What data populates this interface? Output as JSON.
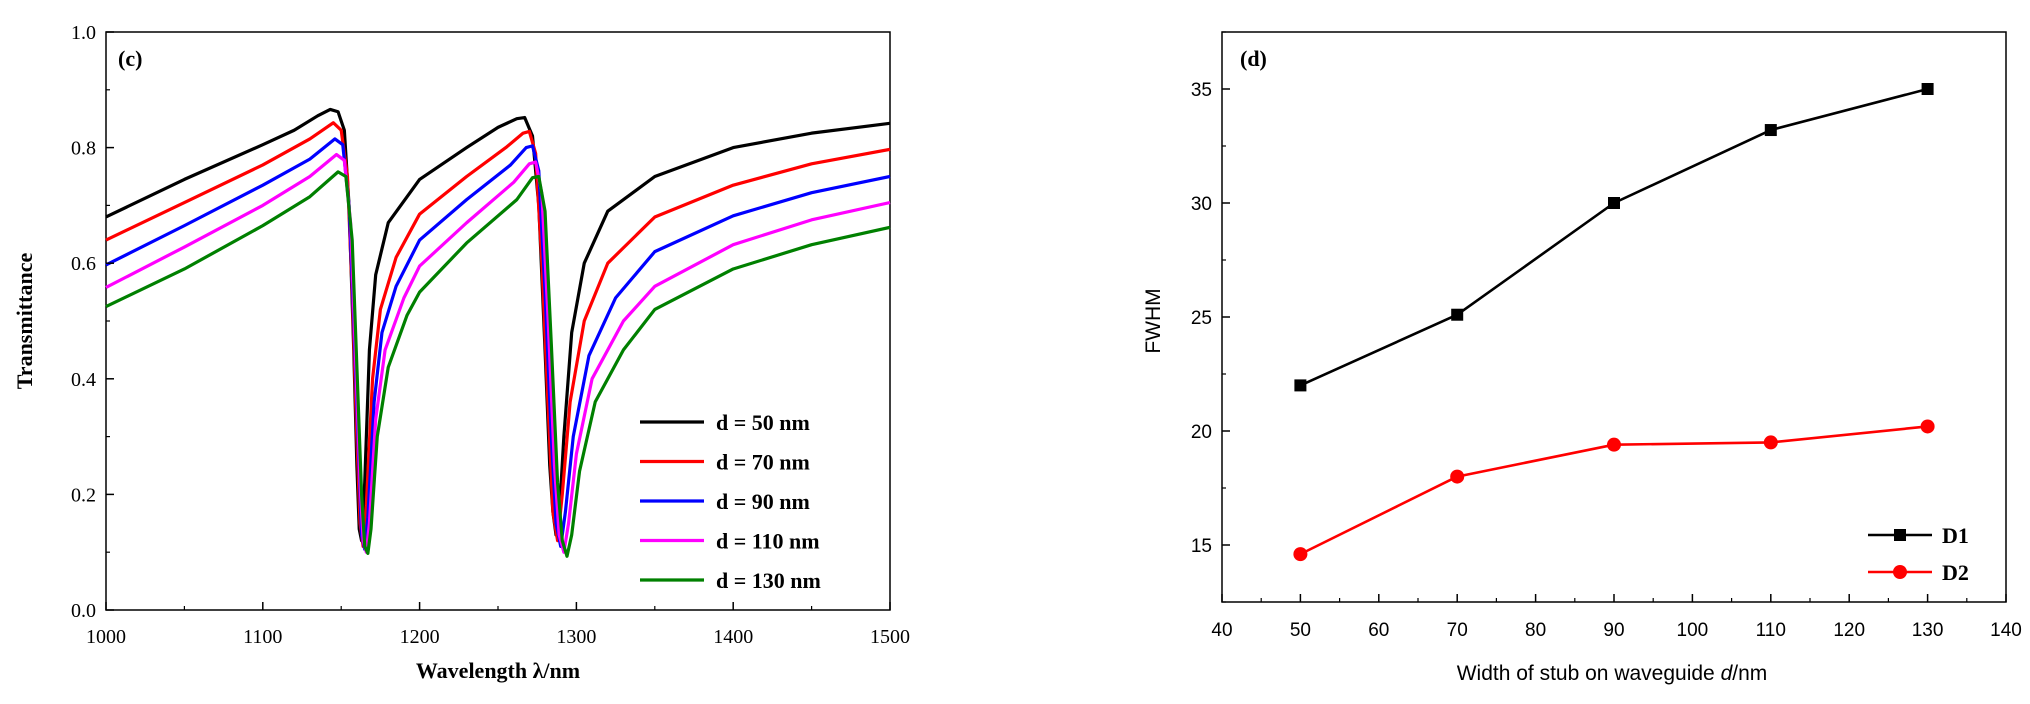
{
  "chart_data": [
    {
      "type": "line",
      "panel_label": "(c)",
      "title": "",
      "xlabel": "Wavelength λ/nm",
      "ylabel": "Transmittance",
      "xlim": [
        1000,
        1500
      ],
      "ylim": [
        0.0,
        1.0
      ],
      "xticks": [
        "1000",
        "1100",
        "1200",
        "1300",
        "1400",
        "1500"
      ],
      "yticks": [
        "0.0",
        "0.2",
        "0.4",
        "0.6",
        "0.8",
        "1.0"
      ],
      "legend_position": "bottom-right",
      "series": [
        {
          "name": "d = 50 nm",
          "color": "#000000",
          "points": [
            [
              1000,
              0.68
            ],
            [
              1050,
              0.745
            ],
            [
              1100,
              0.805
            ],
            [
              1120,
              0.83
            ],
            [
              1135,
              0.855
            ],
            [
              1143,
              0.866
            ],
            [
              1148,
              0.862
            ],
            [
              1152,
              0.83
            ],
            [
              1155,
              0.7
            ],
            [
              1158,
              0.45
            ],
            [
              1160,
              0.25
            ],
            [
              1161.5,
              0.14
            ],
            [
              1163,
              0.12
            ],
            [
              1165,
              0.22
            ],
            [
              1168,
              0.45
            ],
            [
              1172,
              0.58
            ],
            [
              1180,
              0.67
            ],
            [
              1200,
              0.745
            ],
            [
              1230,
              0.8
            ],
            [
              1250,
              0.835
            ],
            [
              1262,
              0.85
            ],
            [
              1267,
              0.852
            ],
            [
              1272,
              0.82
            ],
            [
              1276,
              0.7
            ],
            [
              1280,
              0.45
            ],
            [
              1283,
              0.25
            ],
            [
              1285,
              0.17
            ],
            [
              1287,
              0.13
            ],
            [
              1289,
              0.16
            ],
            [
              1292,
              0.3
            ],
            [
              1297,
              0.48
            ],
            [
              1305,
              0.6
            ],
            [
              1320,
              0.69
            ],
            [
              1350,
              0.75
            ],
            [
              1400,
              0.8
            ],
            [
              1450,
              0.825
            ],
            [
              1500,
              0.842
            ]
          ]
        },
        {
          "name": "d = 70 nm",
          "color": "#ff0000",
          "points": [
            [
              1000,
              0.64
            ],
            [
              1050,
              0.705
            ],
            [
              1100,
              0.77
            ],
            [
              1130,
              0.815
            ],
            [
              1145,
              0.843
            ],
            [
              1150,
              0.83
            ],
            [
              1154,
              0.75
            ],
            [
              1157,
              0.55
            ],
            [
              1160,
              0.3
            ],
            [
              1162,
              0.15
            ],
            [
              1164,
              0.11
            ],
            [
              1166,
              0.18
            ],
            [
              1170,
              0.4
            ],
            [
              1175,
              0.52
            ],
            [
              1185,
              0.61
            ],
            [
              1200,
              0.685
            ],
            [
              1230,
              0.75
            ],
            [
              1255,
              0.8
            ],
            [
              1266,
              0.825
            ],
            [
              1270,
              0.828
            ],
            [
              1274,
              0.79
            ],
            [
              1278,
              0.6
            ],
            [
              1282,
              0.35
            ],
            [
              1285,
              0.17
            ],
            [
              1288,
              0.12
            ],
            [
              1291,
              0.2
            ],
            [
              1296,
              0.36
            ],
            [
              1305,
              0.5
            ],
            [
              1320,
              0.6
            ],
            [
              1350,
              0.68
            ],
            [
              1400,
              0.735
            ],
            [
              1450,
              0.772
            ],
            [
              1500,
              0.797
            ]
          ]
        },
        {
          "name": "d = 90 nm",
          "color": "#0000ff",
          "points": [
            [
              1000,
              0.597
            ],
            [
              1050,
              0.665
            ],
            [
              1100,
              0.735
            ],
            [
              1130,
              0.78
            ],
            [
              1146,
              0.815
            ],
            [
              1151,
              0.805
            ],
            [
              1155,
              0.7
            ],
            [
              1158,
              0.5
            ],
            [
              1161,
              0.27
            ],
            [
              1163,
              0.13
            ],
            [
              1165,
              0.105
            ],
            [
              1167,
              0.16
            ],
            [
              1171,
              0.36
            ],
            [
              1176,
              0.48
            ],
            [
              1185,
              0.56
            ],
            [
              1200,
              0.64
            ],
            [
              1230,
              0.71
            ],
            [
              1258,
              0.77
            ],
            [
              1268,
              0.8
            ],
            [
              1272,
              0.803
            ],
            [
              1276,
              0.76
            ],
            [
              1280,
              0.55
            ],
            [
              1284,
              0.3
            ],
            [
              1287,
              0.15
            ],
            [
              1290,
              0.11
            ],
            [
              1293,
              0.17
            ],
            [
              1298,
              0.3
            ],
            [
              1308,
              0.44
            ],
            [
              1325,
              0.54
            ],
            [
              1350,
              0.62
            ],
            [
              1400,
              0.682
            ],
            [
              1450,
              0.722
            ],
            [
              1500,
              0.75
            ]
          ]
        },
        {
          "name": "d = 110 nm",
          "color": "#ff00ff",
          "points": [
            [
              1000,
              0.558
            ],
            [
              1050,
              0.628
            ],
            [
              1100,
              0.7
            ],
            [
              1130,
              0.75
            ],
            [
              1147,
              0.788
            ],
            [
              1152,
              0.778
            ],
            [
              1156,
              0.67
            ],
            [
              1159,
              0.45
            ],
            [
              1162,
              0.22
            ],
            [
              1164,
              0.12
            ],
            [
              1166,
              0.1
            ],
            [
              1168,
              0.15
            ],
            [
              1172,
              0.33
            ],
            [
              1178,
              0.45
            ],
            [
              1190,
              0.54
            ],
            [
              1200,
              0.595
            ],
            [
              1230,
              0.67
            ],
            [
              1260,
              0.74
            ],
            [
              1270,
              0.772
            ],
            [
              1274,
              0.775
            ],
            [
              1278,
              0.72
            ],
            [
              1282,
              0.5
            ],
            [
              1286,
              0.25
            ],
            [
              1289,
              0.13
            ],
            [
              1292,
              0.1
            ],
            [
              1295,
              0.15
            ],
            [
              1300,
              0.27
            ],
            [
              1310,
              0.4
            ],
            [
              1330,
              0.5
            ],
            [
              1350,
              0.56
            ],
            [
              1400,
              0.632
            ],
            [
              1450,
              0.675
            ],
            [
              1500,
              0.705
            ]
          ]
        },
        {
          "name": "d = 130 nm",
          "color": "#008000",
          "points": [
            [
              1000,
              0.525
            ],
            [
              1050,
              0.59
            ],
            [
              1100,
              0.665
            ],
            [
              1130,
              0.715
            ],
            [
              1148,
              0.758
            ],
            [
              1153,
              0.75
            ],
            [
              1157,
              0.64
            ],
            [
              1160,
              0.42
            ],
            [
              1163,
              0.2
            ],
            [
              1165,
              0.11
            ],
            [
              1167,
              0.098
            ],
            [
              1169,
              0.14
            ],
            [
              1173,
              0.3
            ],
            [
              1180,
              0.42
            ],
            [
              1192,
              0.51
            ],
            [
              1200,
              0.55
            ],
            [
              1230,
              0.635
            ],
            [
              1262,
              0.71
            ],
            [
              1272,
              0.748
            ],
            [
              1276,
              0.75
            ],
            [
              1280,
              0.69
            ],
            [
              1284,
              0.46
            ],
            [
              1288,
              0.22
            ],
            [
              1291,
              0.12
            ],
            [
              1294,
              0.093
            ],
            [
              1297,
              0.13
            ],
            [
              1302,
              0.24
            ],
            [
              1312,
              0.36
            ],
            [
              1330,
              0.45
            ],
            [
              1350,
              0.52
            ],
            [
              1400,
              0.59
            ],
            [
              1450,
              0.632
            ],
            [
              1500,
              0.662
            ]
          ]
        }
      ]
    },
    {
      "type": "line",
      "panel_label": "(d)",
      "title": "",
      "xlabel": "Width of stub on waveguide ",
      "xlabel_italic": "d",
      "xlabel_suffix": "/nm",
      "ylabel": "FWHM",
      "xlim": [
        40,
        140
      ],
      "ylim": [
        12.5,
        37.5
      ],
      "xticks": [
        "40",
        "50",
        "60",
        "70",
        "80",
        "90",
        "100",
        "110",
        "120",
        "130",
        "140"
      ],
      "yticks": [
        "15",
        "20",
        "25",
        "30",
        "35"
      ],
      "legend_position": "bottom-right",
      "series": [
        {
          "name": "D1",
          "color": "#000000",
          "marker": "square",
          "x": [
            50,
            70,
            90,
            110,
            130
          ],
          "y": [
            22.0,
            25.1,
            30.0,
            33.2,
            35.0
          ]
        },
        {
          "name": "D2",
          "color": "#ff0000",
          "marker": "circle",
          "x": [
            50,
            70,
            90,
            110,
            130
          ],
          "y": [
            14.6,
            18.0,
            19.4,
            19.5,
            20.2
          ]
        }
      ]
    }
  ]
}
